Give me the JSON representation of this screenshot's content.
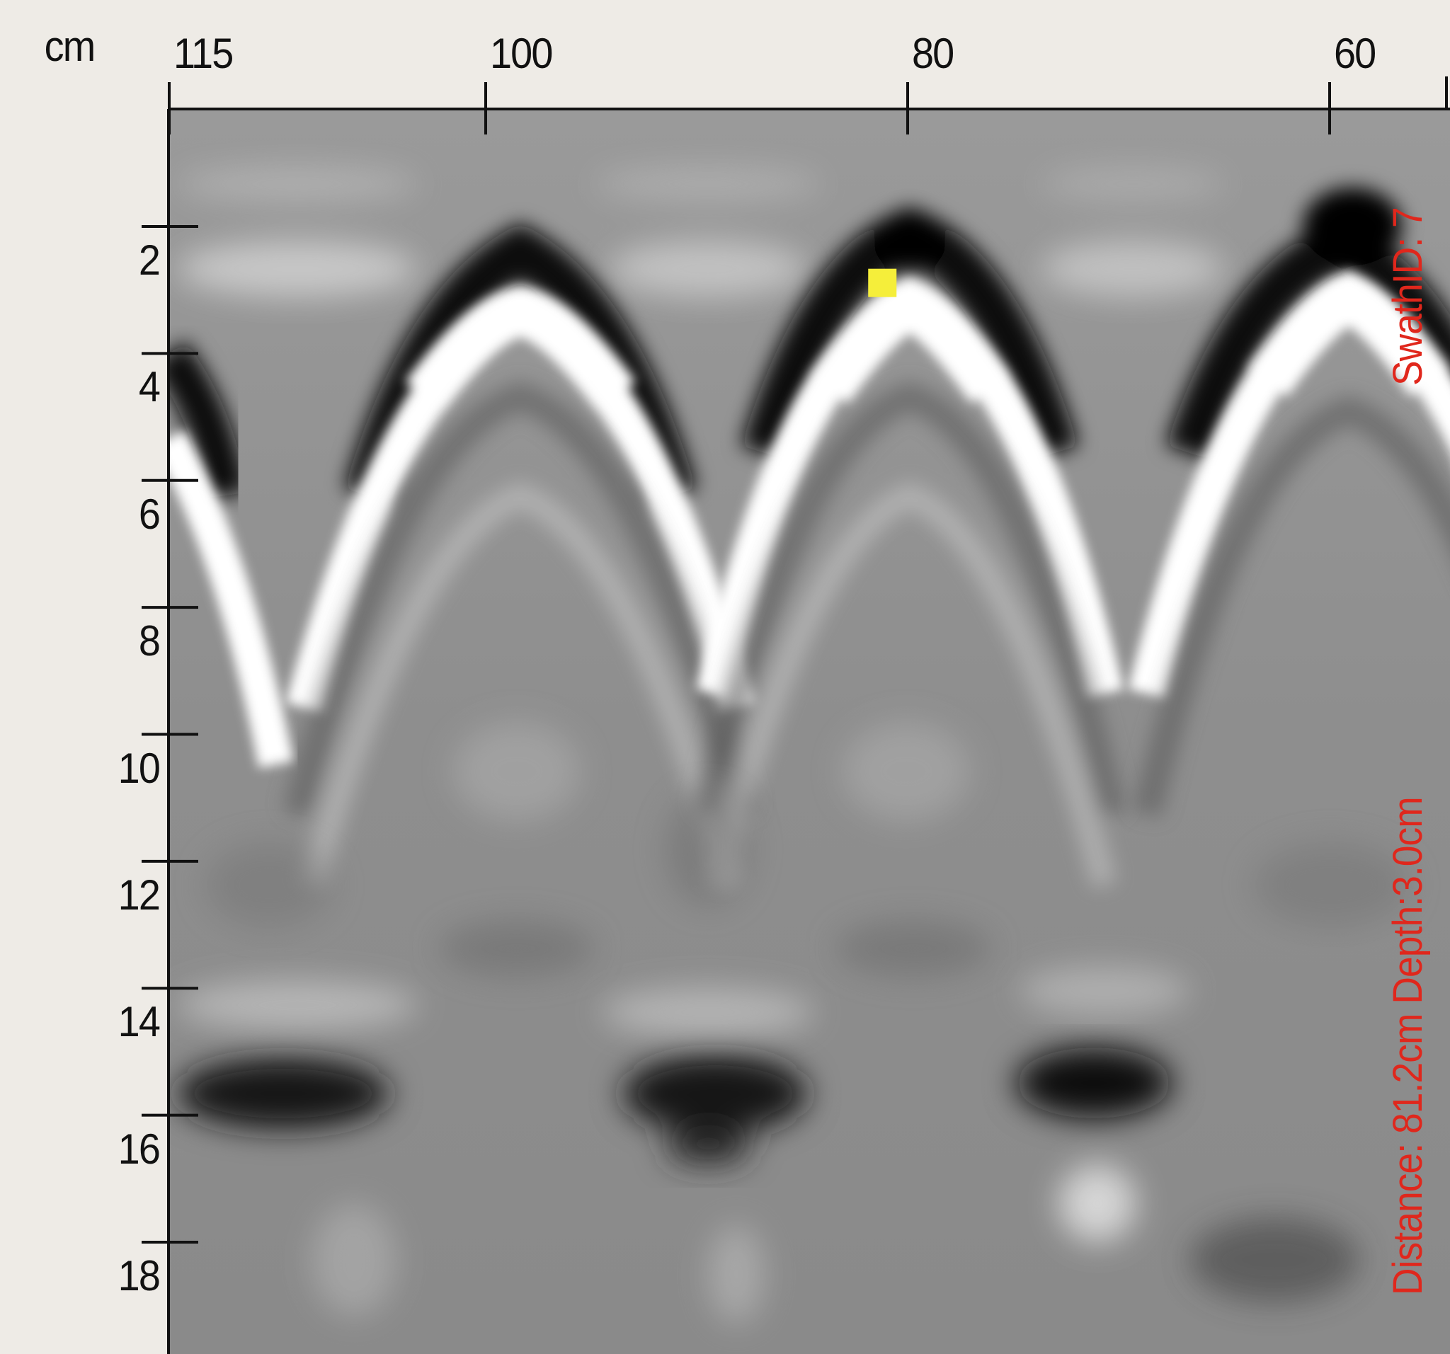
{
  "unit_label": "cm",
  "distance_ticks": [
    "115",
    "100",
    "80",
    "60"
  ],
  "depth_ticks": [
    "2",
    "4",
    "6",
    "8",
    "10",
    "12",
    "14",
    "16",
    "18"
  ],
  "readout": {
    "swath": "SwathID: 7",
    "position": "Distance: 81.2cm Depth:3.0cm"
  },
  "cursor": {
    "distance_cm": 81.2,
    "depth_cm": 3.0,
    "color": "#f5ee3a"
  },
  "colors": {
    "background": "#eeebe6",
    "readout_text": "#e0271c",
    "axis": "#111111"
  }
}
